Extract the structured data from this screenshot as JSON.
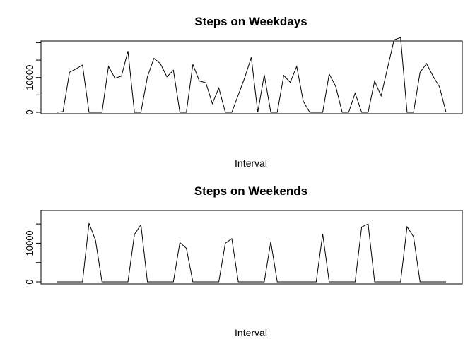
{
  "chart_data": [
    {
      "type": "line",
      "title": "Steps on Weekdays",
      "xlabel": "Interval",
      "ylabel": "",
      "ylim": [
        0,
        20500
      ],
      "yticks": [
        0,
        5000,
        10000,
        15000,
        20000
      ],
      "ytick_labels": [
        "0",
        "",
        "10000",
        "",
        ""
      ],
      "grid": false,
      "x_axis_shown": false,
      "values": [
        0,
        200,
        11500,
        12500,
        13600,
        0,
        0,
        0,
        13200,
        9800,
        10400,
        17600,
        0,
        0,
        10200,
        15500,
        14000,
        10200,
        12100,
        0,
        0,
        13800,
        9000,
        8500,
        2500,
        7000,
        0,
        0,
        5000,
        10000,
        15800,
        0,
        10800,
        0,
        0,
        10600,
        8600,
        13200,
        3200,
        0,
        0,
        0,
        11000,
        7500,
        0,
        0,
        5500,
        0,
        0,
        9000,
        4700,
        12800,
        20800,
        21500,
        0,
        0,
        11500,
        14000,
        10400,
        7300,
        0
      ]
    },
    {
      "type": "line",
      "title": "Steps on Weekends",
      "xlabel": "Interval",
      "ylabel": "",
      "ylim": [
        0,
        18500
      ],
      "yticks": [
        0,
        5000,
        10000,
        15000
      ],
      "ytick_labels": [
        "0",
        "",
        "10000",
        ""
      ],
      "grid": false,
      "x_axis_shown": false,
      "values": [
        0,
        0,
        0,
        0,
        0,
        15200,
        10800,
        0,
        0,
        0,
        0,
        0,
        12300,
        14800,
        0,
        0,
        0,
        0,
        0,
        10200,
        8700,
        0,
        0,
        0,
        0,
        0,
        10000,
        11200,
        0,
        0,
        0,
        0,
        0,
        10400,
        0,
        0,
        0,
        0,
        0,
        0,
        0,
        12400,
        0,
        0,
        0,
        0,
        0,
        14200,
        15000,
        0,
        0,
        0,
        0,
        0,
        14300,
        11700,
        0,
        0,
        0,
        0,
        0
      ]
    }
  ]
}
